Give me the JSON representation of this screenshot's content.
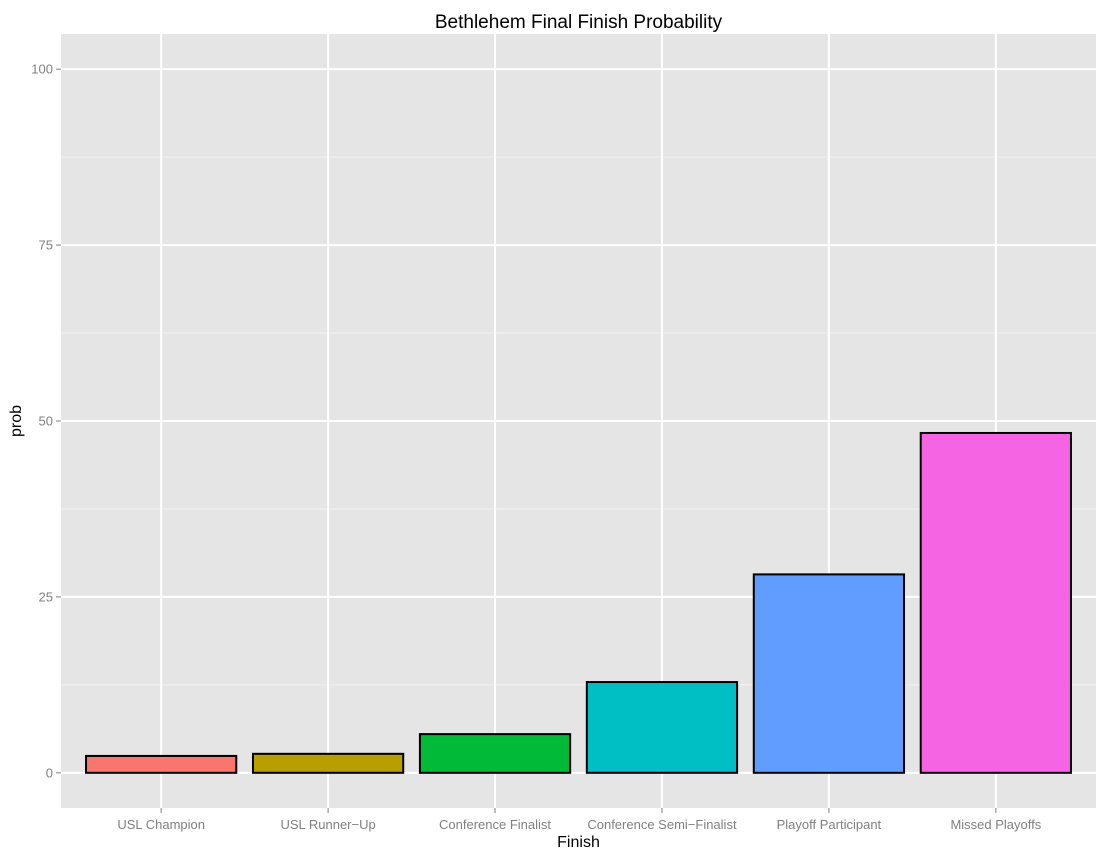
{
  "chart_data": {
    "type": "bar",
    "title": "Bethlehem Final Finish Probability",
    "xlabel": "Finish",
    "ylabel": "prob",
    "categories": [
      "USL Champion",
      "USL Runner−Up",
      "Conference Finalist",
      "Conference Semi−Finalist",
      "Playoff Participant",
      "Missed Playoffs"
    ],
    "values": [
      2.4,
      2.7,
      5.5,
      12.9,
      28.2,
      48.3
    ],
    "colors": [
      "#F8766D",
      "#B79F00",
      "#00BA38",
      "#00BFC4",
      "#619CFF",
      "#F564E3"
    ],
    "yticks": [
      0,
      25,
      50,
      75,
      100
    ],
    "ylim": [
      -5,
      105
    ],
    "grid": true,
    "legend": "none",
    "panel_background": "#E5E5E5",
    "gridline_color": "#FFFFFF",
    "bar_outline": "#000000"
  }
}
